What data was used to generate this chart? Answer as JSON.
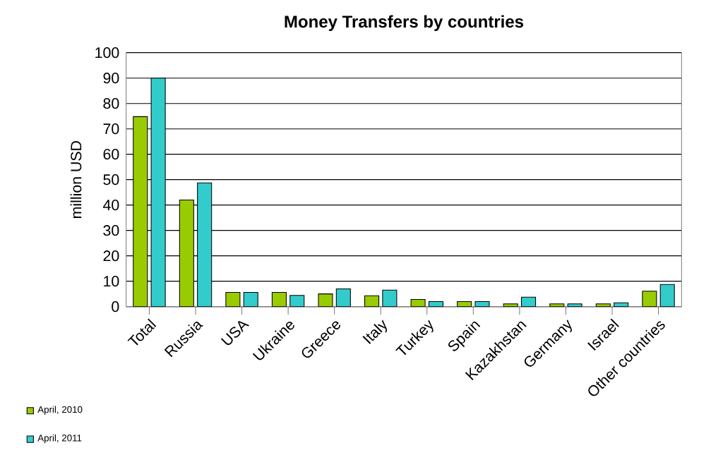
{
  "chart_data": {
    "type": "bar",
    "title": "Money Transfers by countries",
    "ylabel": "million USD",
    "categories": [
      "Total",
      "Russia",
      "USA",
      "Ukraine",
      "Greece",
      "Italy",
      "Turkey",
      "Spain",
      "Kazakhstan",
      "Germany",
      "Israel",
      "Other countries"
    ],
    "series": [
      {
        "name": "April, 2010",
        "color": "#99cc00",
        "values": [
          74.8,
          42,
          5.6,
          5.6,
          5.0,
          4.3,
          2.8,
          2.0,
          1.1,
          1.1,
          1.1,
          6.1
        ]
      },
      {
        "name": "April, 2011",
        "color": "#33cccc",
        "values": [
          90,
          48.7,
          5.6,
          4.4,
          7.0,
          6.5,
          2.0,
          2.0,
          3.7,
          1.1,
          1.5,
          8.7
        ]
      }
    ],
    "ylim": [
      0,
      100
    ],
    "yticks": [
      0,
      10,
      20,
      30,
      40,
      50,
      60,
      70,
      80,
      90,
      100
    ],
    "grid": "y",
    "legend": "bottom left"
  }
}
